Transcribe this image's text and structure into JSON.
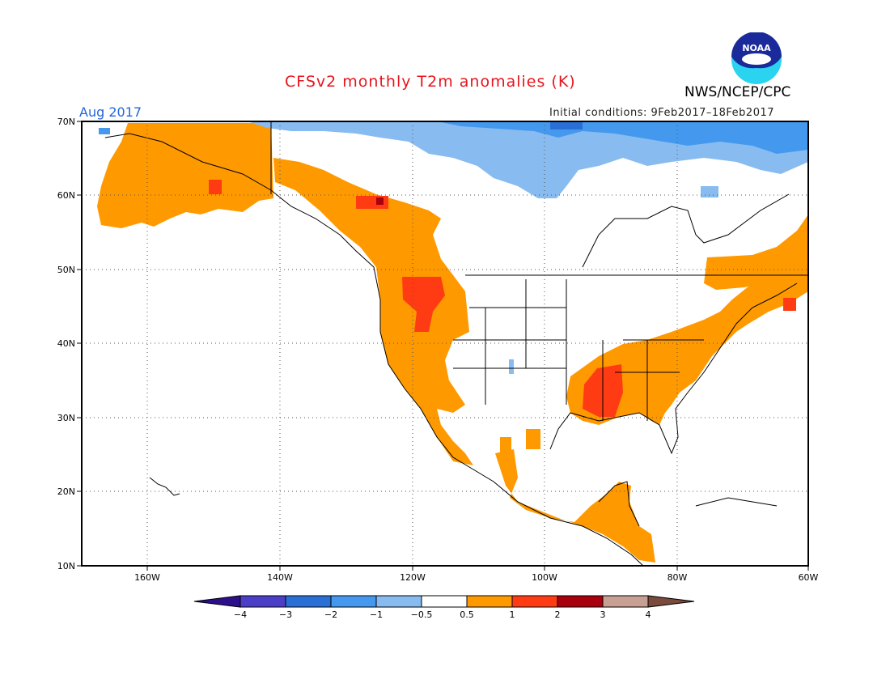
{
  "header": {
    "title": "CFSv2 monthly T2m anomalies (K)",
    "agency": "NWS/NCEP/CPC",
    "logo_text": "NOAA",
    "month": "Aug 2017",
    "initial_conditions": "Initial conditions: 9Feb2017–18Feb2017"
  },
  "map": {
    "lon_labels": [
      "160W",
      "140W",
      "120W",
      "100W",
      "80W",
      "60W"
    ],
    "lat_labels": [
      "70N",
      "60N",
      "50N",
      "40N",
      "30N",
      "20N",
      "10N"
    ],
    "lon_range": [
      -170,
      -60
    ],
    "lat_range": [
      10,
      70
    ],
    "gridlines": "dotted"
  },
  "colorbar": {
    "labels": [
      "−4",
      "−3",
      "−2",
      "−1",
      "−0.5",
      "0.5",
      "1",
      "2",
      "3",
      "4"
    ],
    "colors": [
      "#2d0f8c",
      "#4b3fc8",
      "#2a6fd6",
      "#4499ee",
      "#88bbf0",
      "#ffffff",
      "#ff9900",
      "#ff3b14",
      "#a8000c",
      "#c8a093",
      "#7a4a3c"
    ]
  },
  "anomaly_regions": [
    {
      "name": "Alaska",
      "category": "0.5-1"
    },
    {
      "name": "Western Canada",
      "category": "0.5-1"
    },
    {
      "name": "Pacific Northwest",
      "category": "1-2"
    },
    {
      "name": "US Southeast",
      "category": "1-2"
    },
    {
      "name": "Northern Canada / Arctic islands",
      "category": "-1 to -0.5"
    },
    {
      "name": "Eastern Canada",
      "category": "0.5-1"
    },
    {
      "name": "Central America",
      "category": "0.5-1"
    }
  ]
}
